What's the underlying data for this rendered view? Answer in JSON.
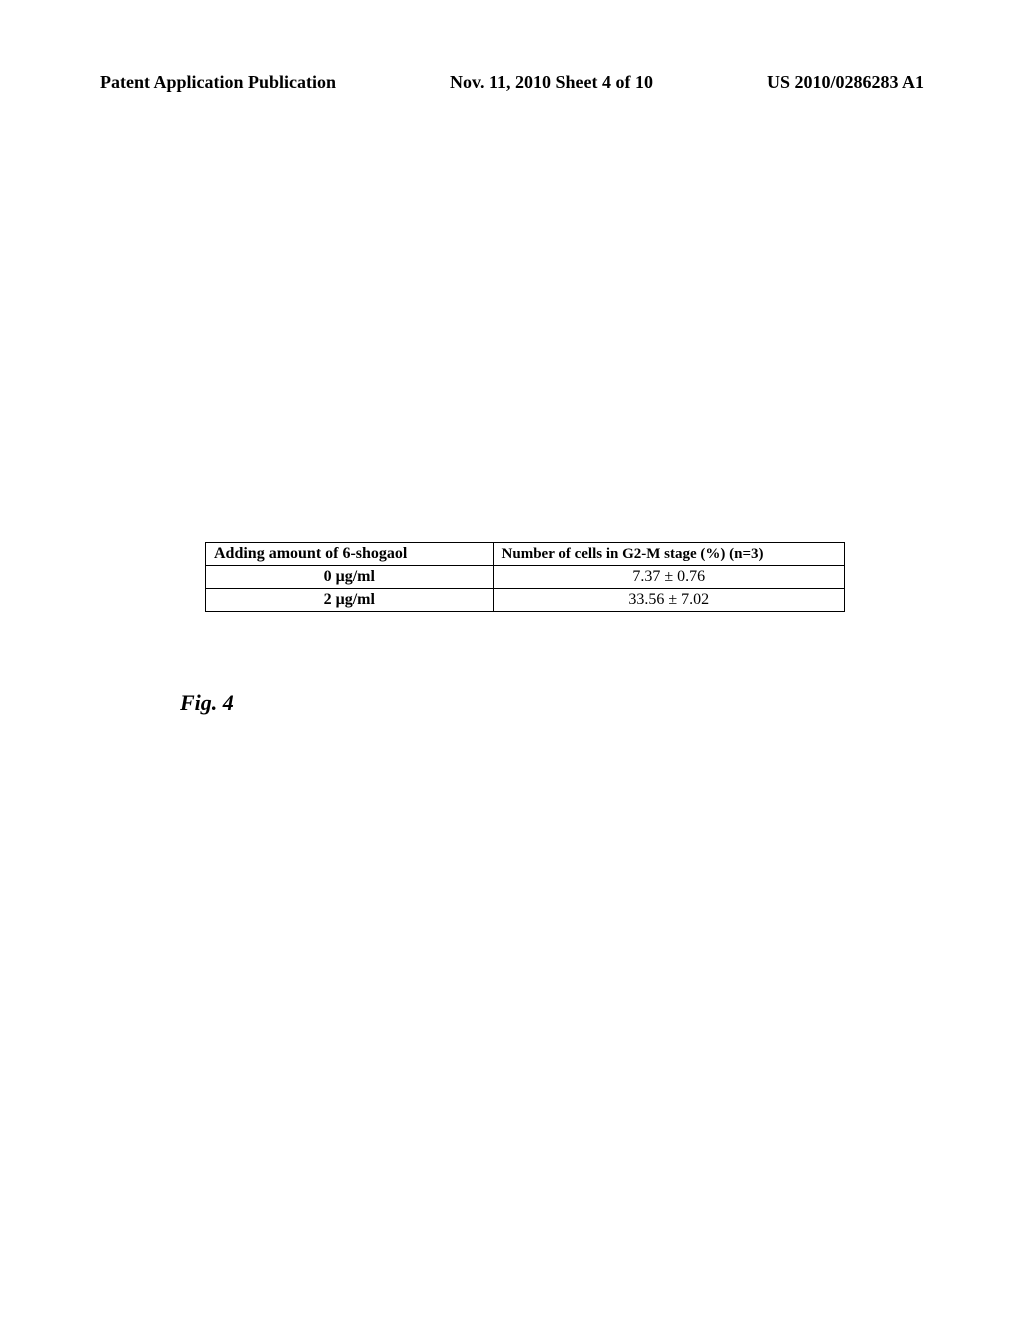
{
  "header": {
    "left": "Patent Application Publication",
    "center": "Nov. 11, 2010  Sheet 4 of 10",
    "right": "US 2010/0286283 A1"
  },
  "table": {
    "columns": [
      "Adding amount of 6-shogaol",
      "Number of cells in G2-M stage (%) (n=3)"
    ],
    "rows": [
      [
        "0 μg/ml",
        "7.37 ± 0.76"
      ],
      [
        "2 μg/ml",
        "33.56 ± 7.02"
      ]
    ],
    "border_color": "#000000",
    "background_color": "#ffffff",
    "header_fontsize": 16,
    "data_fontsize": 16
  },
  "figure": {
    "label": "Fig. 4"
  }
}
